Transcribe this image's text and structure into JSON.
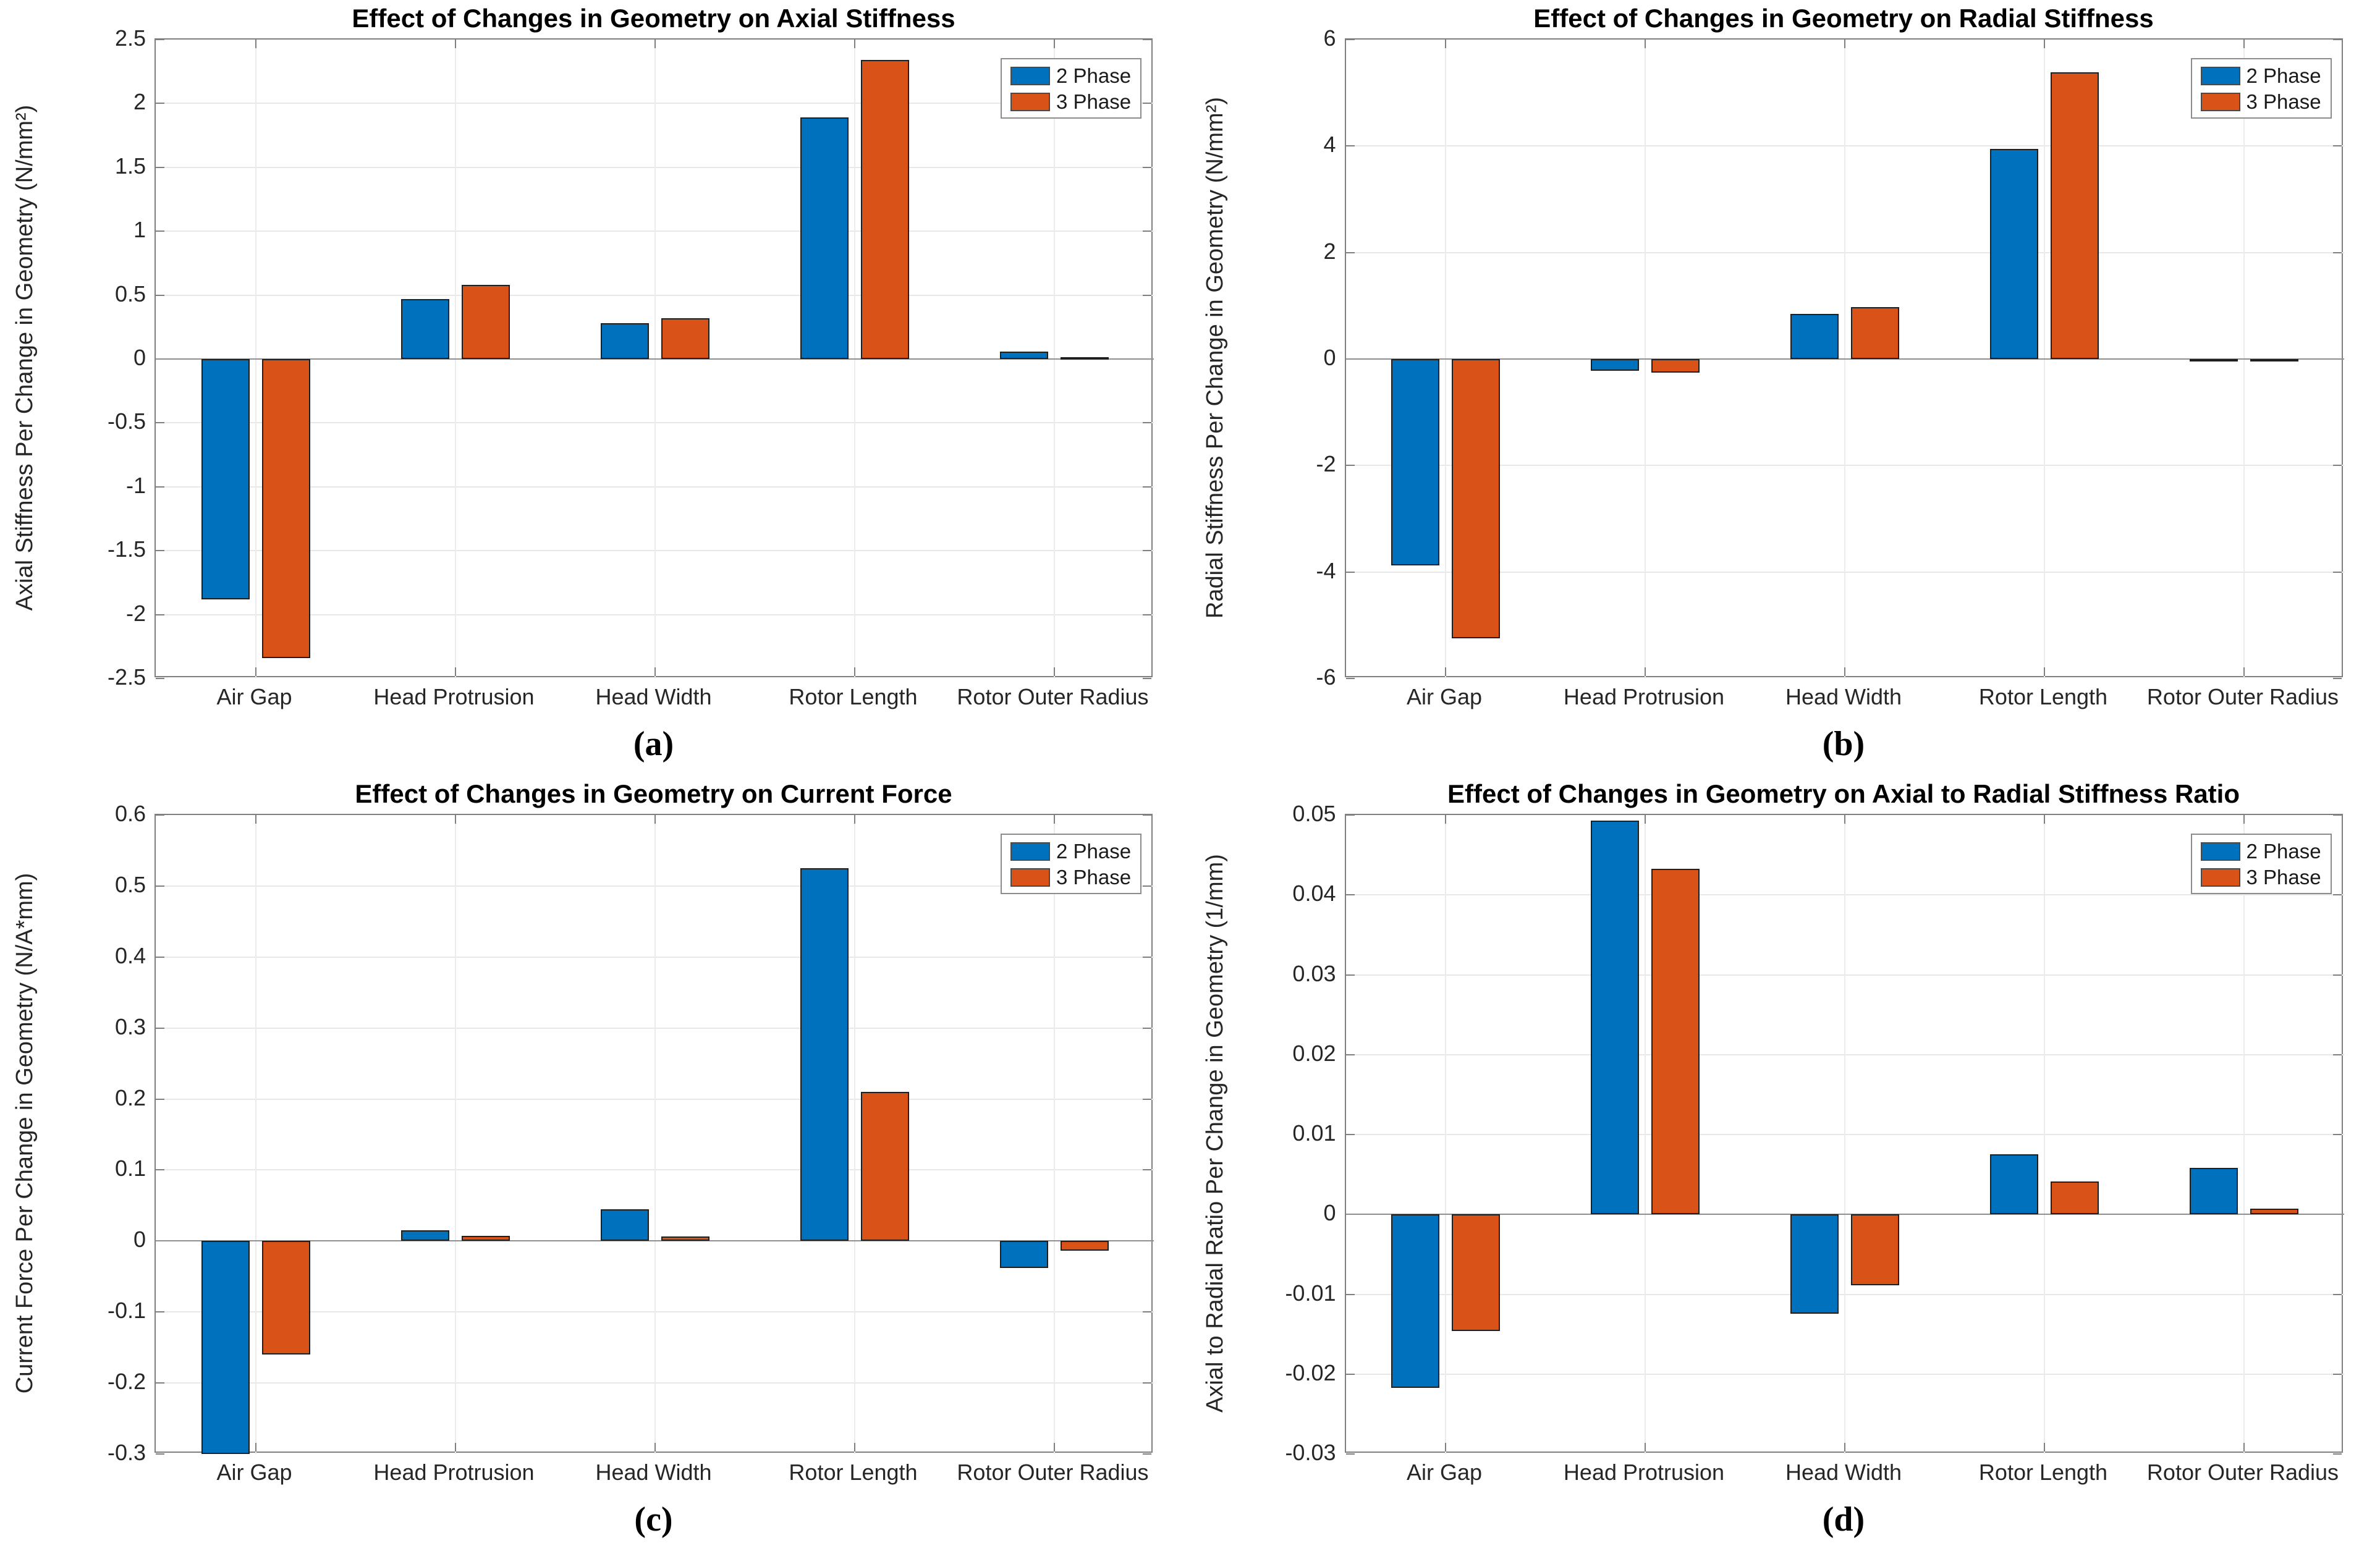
{
  "figure": {
    "background": "#ffffff",
    "palette": {
      "two_phase_blue": "#0072BD",
      "three_phase_orange": "#D95319"
    },
    "legend_labels": [
      "2 Phase",
      "3 Phase"
    ]
  },
  "chart_data": [
    {
      "id": "a",
      "type": "bar",
      "title": "Effect of Changes in Geometry on Axial Stiffness",
      "caption": "(a)",
      "ylabel": "Axial Stiffness Per Change in Geometry (N/mm²)",
      "xlabel": "",
      "ylim": [
        -2.5,
        2.5
      ],
      "yticks": [
        2.5,
        2,
        1.5,
        1,
        0.5,
        0,
        -0.5,
        -1,
        -1.5,
        -2,
        -2.5
      ],
      "grid": true,
      "legend_position": "top-right",
      "categories": [
        "Air Gap",
        "Head Protrusion",
        "Head Width",
        "Rotor Length",
        "Rotor Outer Radius"
      ],
      "series": [
        {
          "name": "2 Phase",
          "color": "#0072BD",
          "values": [
            -1.88,
            0.47,
            0.28,
            1.89,
            0.06
          ]
        },
        {
          "name": "3 Phase",
          "color": "#D95319",
          "values": [
            -2.34,
            0.58,
            0.32,
            2.34,
            0.005
          ]
        }
      ]
    },
    {
      "id": "b",
      "type": "bar",
      "title": "Effect of Changes in Geometry on Radial Stiffness",
      "caption": "(b)",
      "ylabel": "Radial Stiffness Per Change in Geometry (N/mm²)",
      "xlabel": "",
      "ylim": [
        -6,
        6
      ],
      "yticks": [
        6,
        4,
        2,
        0,
        -2,
        -4,
        -6
      ],
      "grid": true,
      "legend_position": "top-right",
      "categories": [
        "Air Gap",
        "Head Protrusion",
        "Head Width",
        "Rotor Length",
        "Rotor Outer Radius"
      ],
      "series": [
        {
          "name": "2 Phase",
          "color": "#0072BD",
          "values": [
            -3.88,
            -0.22,
            0.85,
            3.95,
            -0.02
          ]
        },
        {
          "name": "3 Phase",
          "color": "#D95319",
          "values": [
            -5.24,
            -0.25,
            0.98,
            5.39,
            -0.01
          ]
        }
      ]
    },
    {
      "id": "c",
      "type": "bar",
      "title": "Effect of Changes in Geometry on Current Force",
      "caption": "(c)",
      "ylabel": "Current Force Per Change in Geometry (N/A*mm)",
      "xlabel": "",
      "ylim": [
        -0.3,
        0.6
      ],
      "yticks": [
        0.6,
        0.5,
        0.4,
        0.3,
        0.2,
        0.1,
        0,
        -0.1,
        -0.2,
        -0.3
      ],
      "grid": true,
      "legend_position": "top-right",
      "categories": [
        "Air Gap",
        "Head Protrusion",
        "Head Width",
        "Rotor Length",
        "Rotor Outer Radius"
      ],
      "series": [
        {
          "name": "2 Phase",
          "color": "#0072BD",
          "values": [
            -0.3,
            0.015,
            0.045,
            0.525,
            -0.038
          ]
        },
        {
          "name": "3 Phase",
          "color": "#D95319",
          "values": [
            -0.16,
            0.007,
            0.006,
            0.21,
            -0.014
          ]
        }
      ]
    },
    {
      "id": "d",
      "type": "bar",
      "title": "Effect of Changes in Geometry on Axial to Radial Stiffness Ratio",
      "caption": "(d)",
      "ylabel": "Axial to Radial Ratio Per Change in Geometry (1/mm)",
      "xlabel": "",
      "ylim": [
        -0.03,
        0.05
      ],
      "yticks": [
        0.05,
        0.04,
        0.03,
        0.02,
        0.01,
        0,
        -0.01,
        -0.02,
        -0.03
      ],
      "grid": true,
      "legend_position": "top-right",
      "categories": [
        "Air Gap",
        "Head Protrusion",
        "Head Width",
        "Rotor Length",
        "Rotor Outer Radius"
      ],
      "series": [
        {
          "name": "2 Phase",
          "color": "#0072BD",
          "values": [
            -0.0217,
            0.0493,
            -0.0124,
            0.0075,
            0.0058
          ]
        },
        {
          "name": "3 Phase",
          "color": "#D95319",
          "values": [
            -0.0146,
            0.0433,
            -0.0089,
            0.0041,
            0.0007
          ]
        }
      ]
    }
  ]
}
